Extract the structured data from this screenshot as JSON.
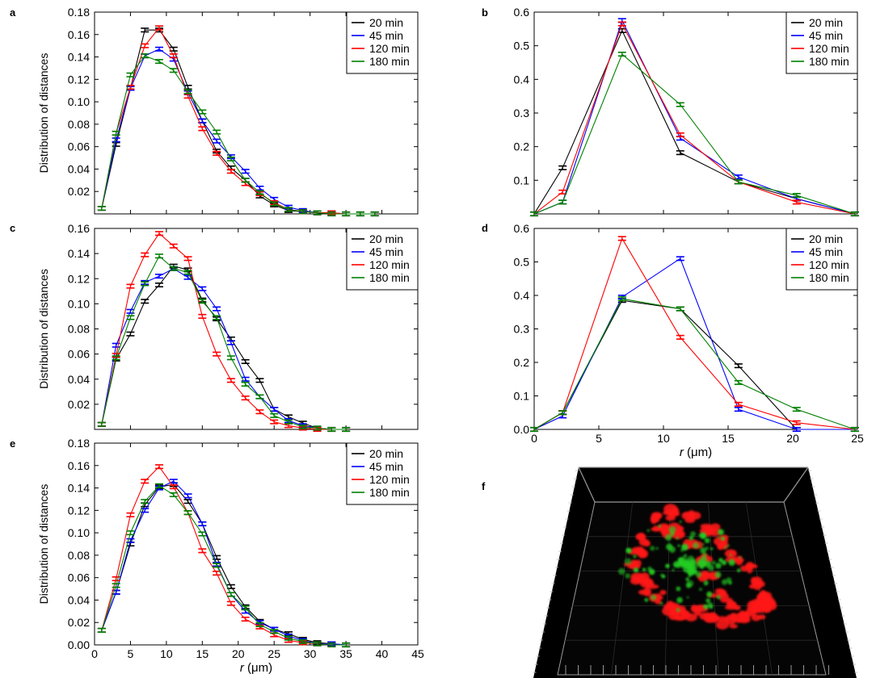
{
  "labels": {
    "ylabel": "Distribution of distances",
    "xlabel": "r (μm)"
  },
  "series_colors": {
    "20 min": "#000000",
    "45 min": "#0000ff",
    "120 min": "#ff0000",
    "180 min": "#008000"
  },
  "chart_data": [
    {
      "panel": "a",
      "type": "line",
      "xlim": [
        0,
        45
      ],
      "ylim": [
        0,
        0.18
      ],
      "yticks": [
        "0.02",
        "0.04",
        "0.06",
        "0.08",
        "0.10",
        "0.12",
        "0.14",
        "0.16",
        "0.18"
      ],
      "xticks": [],
      "ylabel": "Distribution of distances",
      "xlabel": "",
      "legend": "top-right",
      "x": [
        1,
        3,
        5,
        7,
        9,
        11,
        13,
        15,
        17,
        19,
        21,
        23,
        25,
        27,
        29,
        31,
        33,
        35,
        37,
        39
      ],
      "series": [
        {
          "name": "20 min",
          "values": [
            0.005,
            0.062,
            0.112,
            0.164,
            0.164,
            0.147,
            0.113,
            0.083,
            0.056,
            0.041,
            0.03,
            0.016,
            0.008,
            0.003,
            0.002,
            0.001,
            0.0,
            0.0,
            0.0,
            0.0
          ]
        },
        {
          "name": "45 min",
          "values": [
            0.005,
            0.066,
            0.112,
            0.141,
            0.147,
            0.138,
            0.108,
            0.083,
            0.065,
            0.051,
            0.038,
            0.023,
            0.013,
            0.006,
            0.003,
            0.001,
            0.001,
            0.0,
            0.0,
            0.0
          ]
        },
        {
          "name": "120 min",
          "values": [
            0.005,
            0.072,
            0.113,
            0.15,
            0.166,
            0.141,
            0.105,
            0.076,
            0.054,
            0.038,
            0.027,
            0.018,
            0.01,
            0.004,
            0.002,
            0.001,
            0.001,
            0.0,
            0.0,
            0.0
          ]
        },
        {
          "name": "180 min",
          "values": [
            0.005,
            0.072,
            0.124,
            0.141,
            0.136,
            0.128,
            0.109,
            0.091,
            0.073,
            0.049,
            0.03,
            0.019,
            0.009,
            0.004,
            0.002,
            0.001,
            0.0,
            0.0,
            0.0,
            0.0
          ]
        }
      ]
    },
    {
      "panel": "b",
      "type": "line",
      "xlim": [
        0,
        25
      ],
      "ylim": [
        0,
        0.6
      ],
      "yticks": [
        "0.1",
        "0.2",
        "0.3",
        "0.4",
        "0.5",
        "0.6"
      ],
      "xticks": [],
      "ylabel": "",
      "xlabel": "",
      "legend": "top-right",
      "x": [
        0,
        2.2,
        6.8,
        11.3,
        15.8,
        20.3,
        24.8
      ],
      "series": [
        {
          "name": "20 min",
          "values": [
            0.0,
            0.137,
            0.545,
            0.182,
            0.095,
            0.045,
            0.0
          ]
        },
        {
          "name": "45 min",
          "values": [
            0.0,
            0.035,
            0.575,
            0.225,
            0.11,
            0.045,
            0.0
          ]
        },
        {
          "name": "120 min",
          "values": [
            0.0,
            0.065,
            0.565,
            0.235,
            0.095,
            0.035,
            0.0
          ]
        },
        {
          "name": "180 min",
          "values": [
            0.0,
            0.035,
            0.475,
            0.325,
            0.095,
            0.055,
            0.0
          ]
        }
      ]
    },
    {
      "panel": "c",
      "type": "line",
      "xlim": [
        0,
        45
      ],
      "ylim": [
        0,
        0.16
      ],
      "yticks": [
        "0.02",
        "0.04",
        "0.06",
        "0.08",
        "0.10",
        "0.12",
        "0.14",
        "0.16"
      ],
      "xticks": [],
      "ylabel": "Distribution of distances",
      "xlabel": "",
      "legend": "top-right",
      "x": [
        1,
        3,
        5,
        7,
        9,
        11,
        13,
        15,
        17,
        19,
        21,
        23,
        25,
        27,
        29,
        31,
        33,
        35
      ],
      "series": [
        {
          "name": "20 min",
          "values": [
            0.004,
            0.056,
            0.076,
            0.102,
            0.115,
            0.13,
            0.127,
            0.103,
            0.088,
            0.072,
            0.054,
            0.039,
            0.016,
            0.01,
            0.005,
            0.001,
            0.0,
            0.0
          ]
        },
        {
          "name": "45 min",
          "values": [
            0.004,
            0.067,
            0.094,
            0.117,
            0.122,
            0.128,
            0.121,
            0.112,
            0.096,
            0.069,
            0.04,
            0.026,
            0.016,
            0.007,
            0.003,
            0.001,
            0.0,
            0.0
          ]
        },
        {
          "name": "120 min",
          "values": [
            0.004,
            0.059,
            0.114,
            0.139,
            0.156,
            0.146,
            0.136,
            0.09,
            0.06,
            0.039,
            0.025,
            0.014,
            0.006,
            0.003,
            0.001,
            0.0,
            0.0,
            0.0
          ]
        },
        {
          "name": "180 min",
          "values": [
            0.004,
            0.057,
            0.089,
            0.116,
            0.138,
            0.128,
            0.125,
            0.102,
            0.089,
            0.057,
            0.036,
            0.026,
            0.011,
            0.006,
            0.002,
            0.001,
            0.0,
            0.0
          ]
        }
      ]
    },
    {
      "panel": "d",
      "type": "line",
      "xlim": [
        0,
        25
      ],
      "ylim": [
        0,
        0.6
      ],
      "yticks": [
        "0.0",
        "0.1",
        "0.2",
        "0.3",
        "0.4",
        "0.5",
        "0.6"
      ],
      "xticks": [
        "0",
        "5",
        "10",
        "15",
        "20",
        "25"
      ],
      "ylabel": "",
      "xlabel": "r (μm)",
      "legend": "top-right",
      "x": [
        0,
        2.2,
        6.8,
        11.3,
        15.8,
        20.3,
        24.8
      ],
      "series": [
        {
          "name": "20 min",
          "values": [
            0.0,
            0.05,
            0.385,
            0.36,
            0.19,
            0.0,
            0.0
          ]
        },
        {
          "name": "45 min",
          "values": [
            0.0,
            0.04,
            0.395,
            0.51,
            0.06,
            0.0,
            0.0
          ]
        },
        {
          "name": "120 min",
          "values": [
            0.0,
            0.05,
            0.57,
            0.275,
            0.075,
            0.02,
            0.0
          ]
        },
        {
          "name": "180 min",
          "values": [
            0.0,
            0.05,
            0.39,
            0.36,
            0.14,
            0.06,
            0.0
          ]
        }
      ]
    },
    {
      "panel": "e",
      "type": "line",
      "xlim": [
        0,
        45
      ],
      "ylim": [
        0,
        0.18
      ],
      "yticks": [
        "0.00",
        "0.02",
        "0.04",
        "0.06",
        "0.08",
        "0.10",
        "0.12",
        "0.14",
        "0.16",
        "0.18"
      ],
      "xticks": [
        "0",
        "5",
        "10",
        "15",
        "20",
        "25",
        "30",
        "35",
        "40",
        "45"
      ],
      "ylabel": "Distribution of distances",
      "xlabel": "r (μm)",
      "legend": "top-right",
      "x": [
        1,
        3,
        5,
        7,
        9,
        11,
        13,
        15,
        17,
        19,
        21,
        23,
        25,
        27,
        29,
        31,
        33,
        35
      ],
      "series": [
        {
          "name": "20 min",
          "values": [
            0.013,
            0.047,
            0.09,
            0.125,
            0.141,
            0.143,
            0.128,
            0.108,
            0.078,
            0.052,
            0.034,
            0.021,
            0.014,
            0.01,
            0.005,
            0.002,
            0.001,
            0.0
          ]
        },
        {
          "name": "45 min",
          "values": [
            0.013,
            0.047,
            0.093,
            0.12,
            0.14,
            0.146,
            0.133,
            0.108,
            0.072,
            0.045,
            0.03,
            0.02,
            0.014,
            0.008,
            0.004,
            0.001,
            0.001,
            0.0
          ]
        },
        {
          "name": "120 min",
          "values": [
            0.013,
            0.059,
            0.116,
            0.146,
            0.159,
            0.141,
            0.118,
            0.084,
            0.064,
            0.037,
            0.023,
            0.016,
            0.009,
            0.004,
            0.002,
            0.001,
            0.0,
            0.0
          ]
        },
        {
          "name": "180 min",
          "values": [
            0.013,
            0.053,
            0.1,
            0.128,
            0.142,
            0.134,
            0.118,
            0.099,
            0.071,
            0.045,
            0.033,
            0.018,
            0.012,
            0.006,
            0.003,
            0.001,
            0.0,
            0.0
          ]
        }
      ]
    }
  ],
  "panel_f": {
    "label": "f",
    "type": "3d-render",
    "colors": {
      "background": "#000000",
      "red_channel": "#ff1a1a",
      "green_channel": "#22cc22",
      "grid": "#9a9a9a"
    }
  }
}
